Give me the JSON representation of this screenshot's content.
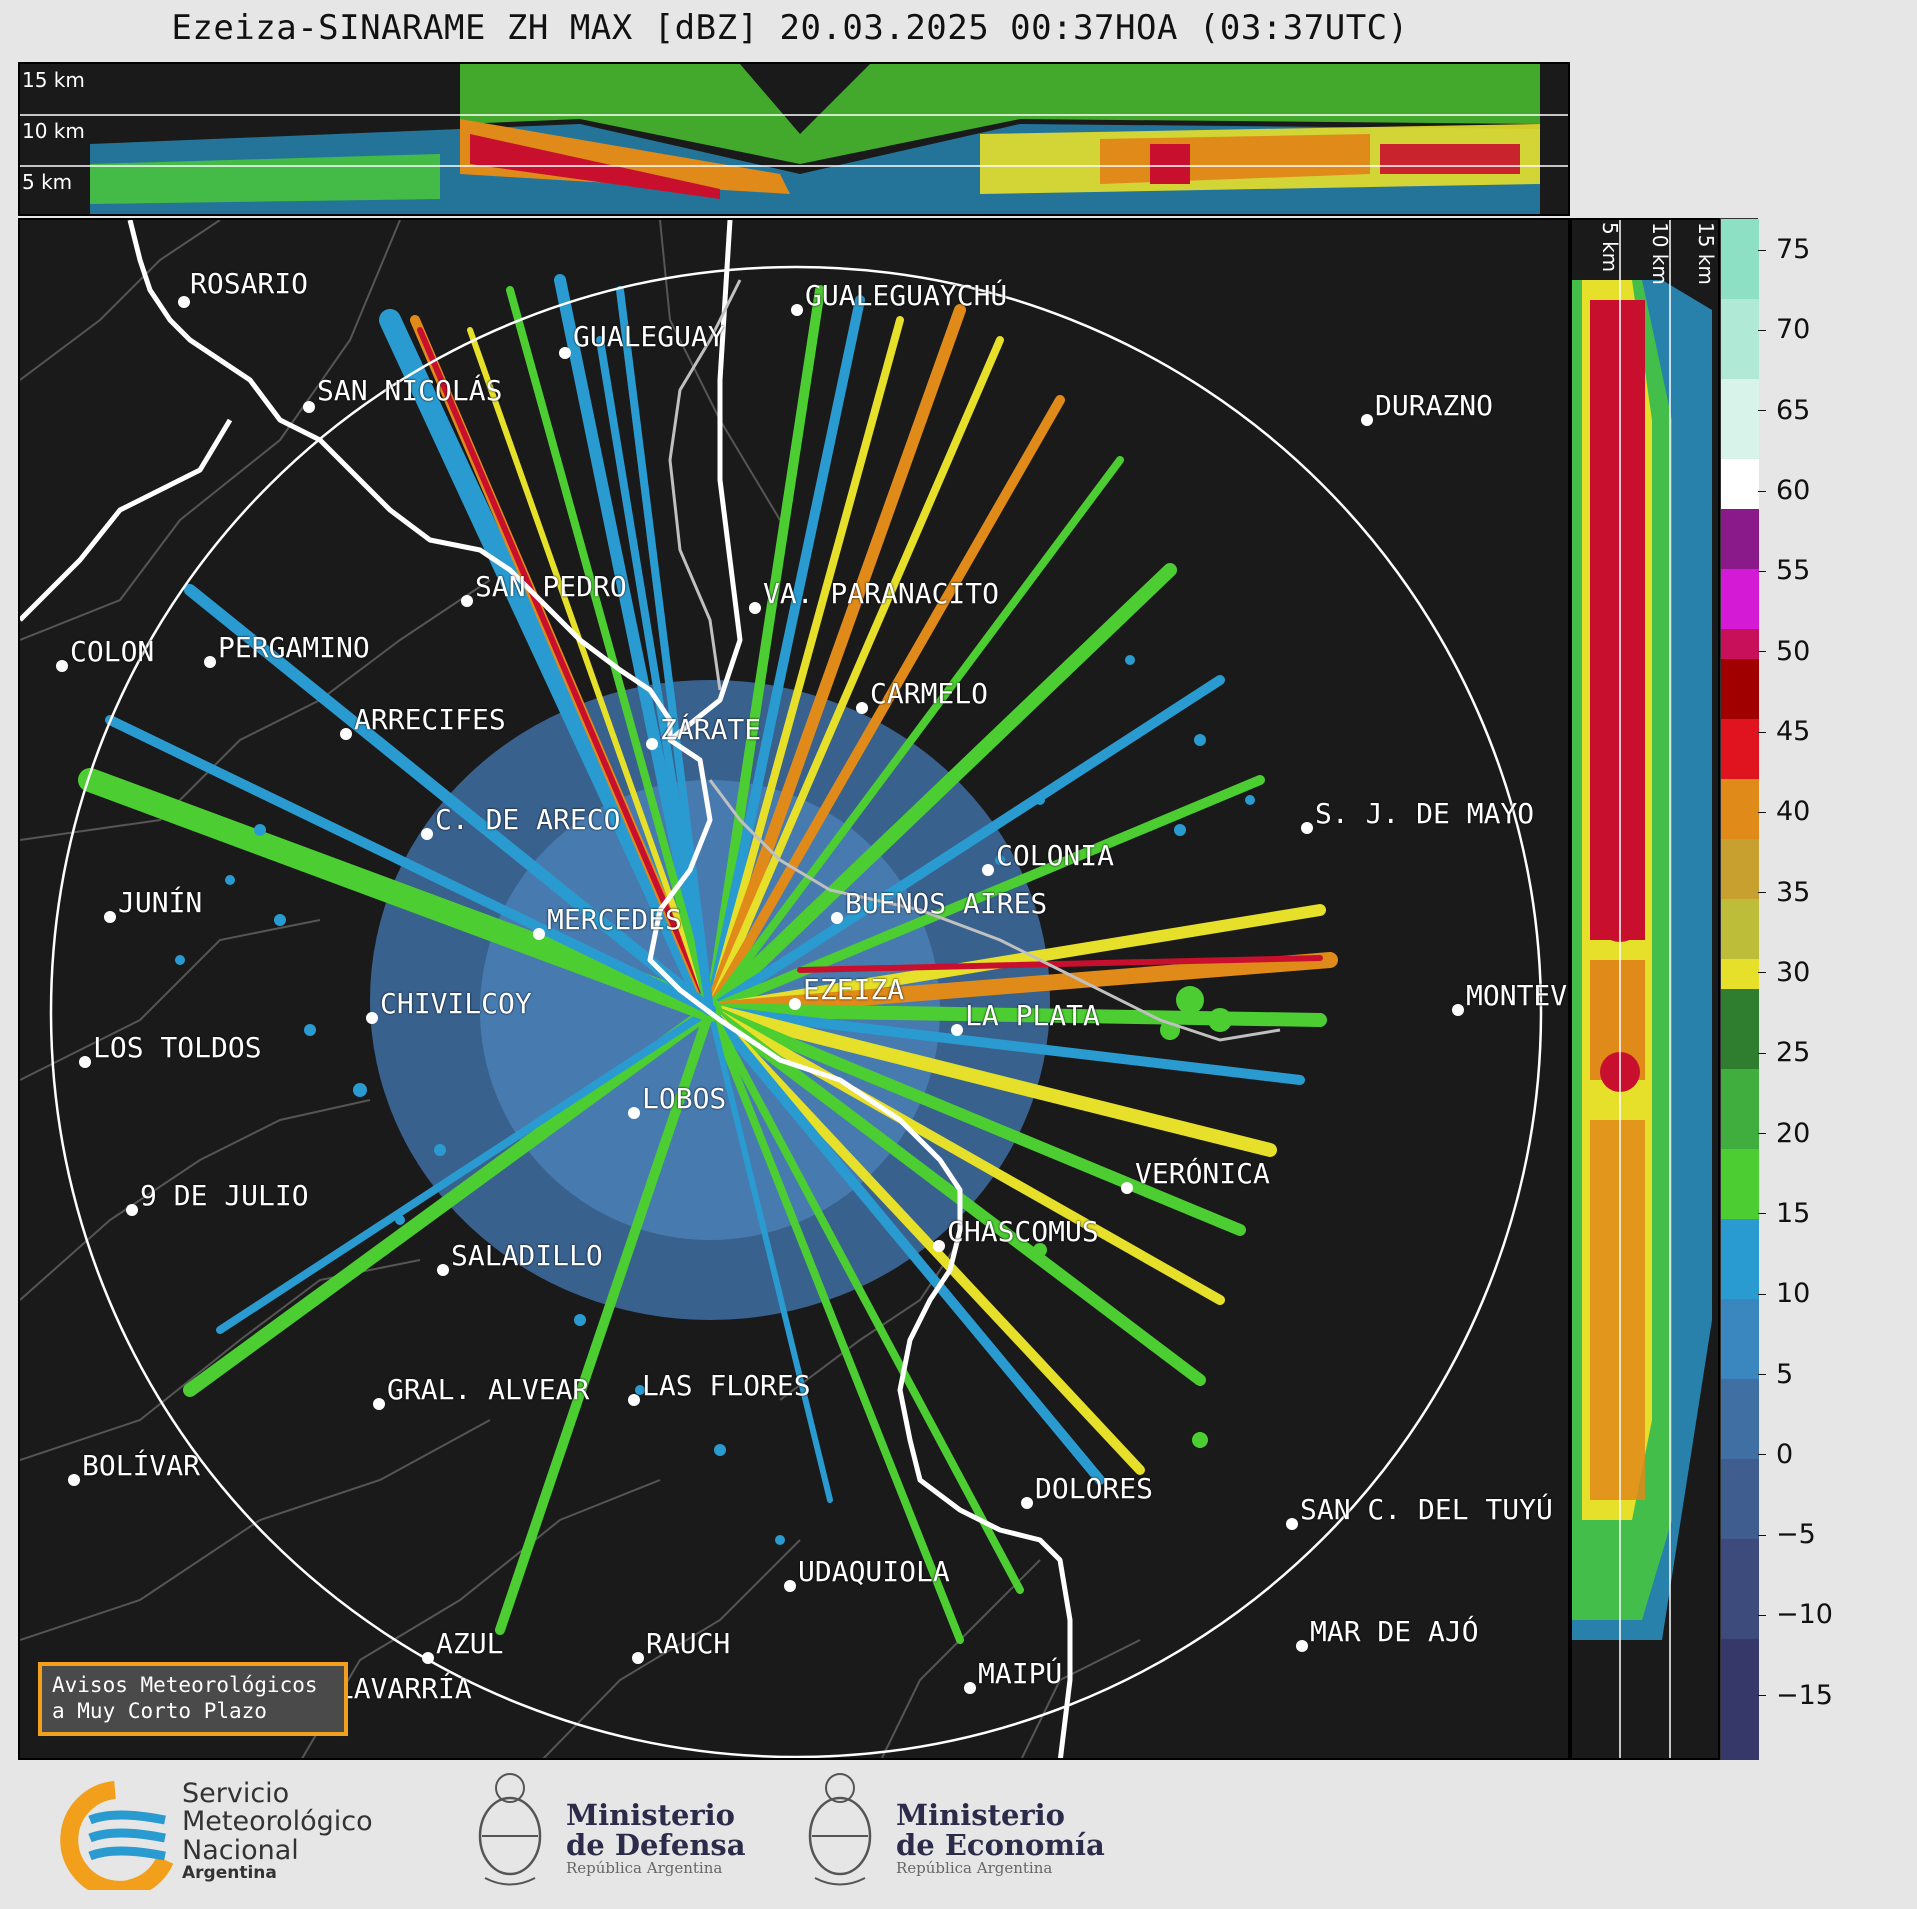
{
  "title": "Ezeiza-SINARAME ZH MAX [dBZ] 20.03.2025 00:37HOA (03:37UTC)",
  "top_strip": {
    "labels": [
      "15 km",
      "10 km",
      "5 km"
    ]
  },
  "right_strip": {
    "labels": [
      "5 km",
      "10 km",
      "15 km"
    ]
  },
  "colorbar": {
    "unit": "dBZ",
    "ticks": [
      "75",
      "70",
      "65",
      "60",
      "55",
      "50",
      "45",
      "40",
      "35",
      "30",
      "25",
      "20",
      "15",
      "10",
      "5",
      "0",
      "−5",
      "−10",
      "−15"
    ],
    "min": -19,
    "max": 77
  },
  "cities": [
    {
      "name": "ROSARIO"
    },
    {
      "name": "GUALEGUAYCHÚ"
    },
    {
      "name": "GUALEGUAY"
    },
    {
      "name": "SAN NICOLÁS"
    },
    {
      "name": "DURAZNO"
    },
    {
      "name": "SAN PEDRO"
    },
    {
      "name": "VA. PARANACITO"
    },
    {
      "name": "COLON"
    },
    {
      "name": "PERGAMINO"
    },
    {
      "name": "CARMELO"
    },
    {
      "name": "ARRECIFES"
    },
    {
      "name": "ZÁRATE"
    },
    {
      "name": "S. J. DE MAYO"
    },
    {
      "name": "C. DE ARECO"
    },
    {
      "name": "COLONIA"
    },
    {
      "name": "JUNÍN"
    },
    {
      "name": "BUENOS AIRES"
    },
    {
      "name": "MERCEDES"
    },
    {
      "name": "EZEIZA"
    },
    {
      "name": "MONTEV"
    },
    {
      "name": "CHIVILCOY"
    },
    {
      "name": "LA PLATA"
    },
    {
      "name": "LOS TOLDOS"
    },
    {
      "name": "LOBOS"
    },
    {
      "name": "VERÓNICA"
    },
    {
      "name": "9 DE JULIO"
    },
    {
      "name": "CHASCOMUS"
    },
    {
      "name": "SALADILLO"
    },
    {
      "name": "GRAL. ALVEAR"
    },
    {
      "name": "LAS FLORES"
    },
    {
      "name": "BOLÍVAR"
    },
    {
      "name": "DOLORES"
    },
    {
      "name": "SAN C. DEL TUYÚ"
    },
    {
      "name": "UDAQUIOLA"
    },
    {
      "name": "AZUL"
    },
    {
      "name": "RAUCH"
    },
    {
      "name": "MAR DE AJÓ"
    },
    {
      "name": "OLAVARRÍA"
    },
    {
      "name": "MAIPÚ"
    }
  ],
  "aviso": {
    "line1": "Avisos Meteorológicos",
    "line2": "a Muy Corto Plazo"
  },
  "logos": {
    "smn": [
      "Servicio",
      "Meteorológico",
      "Nacional",
      "Argentina"
    ],
    "defensa": [
      "Ministerio",
      "de Defensa",
      "República Argentina"
    ],
    "economia": [
      "Ministerio",
      "de Economía",
      "República Argentina"
    ]
  },
  "colors": {
    "background": "#1a1a1a",
    "echo_low": "#3f6fa3",
    "echo_blue": "#2a9bd0",
    "echo_green": "#4ccd32",
    "echo_yellow": "#e6e02a",
    "echo_orange": "#e08a1a",
    "echo_red": "#c8102e",
    "accent_orange": "#f2a01b"
  }
}
